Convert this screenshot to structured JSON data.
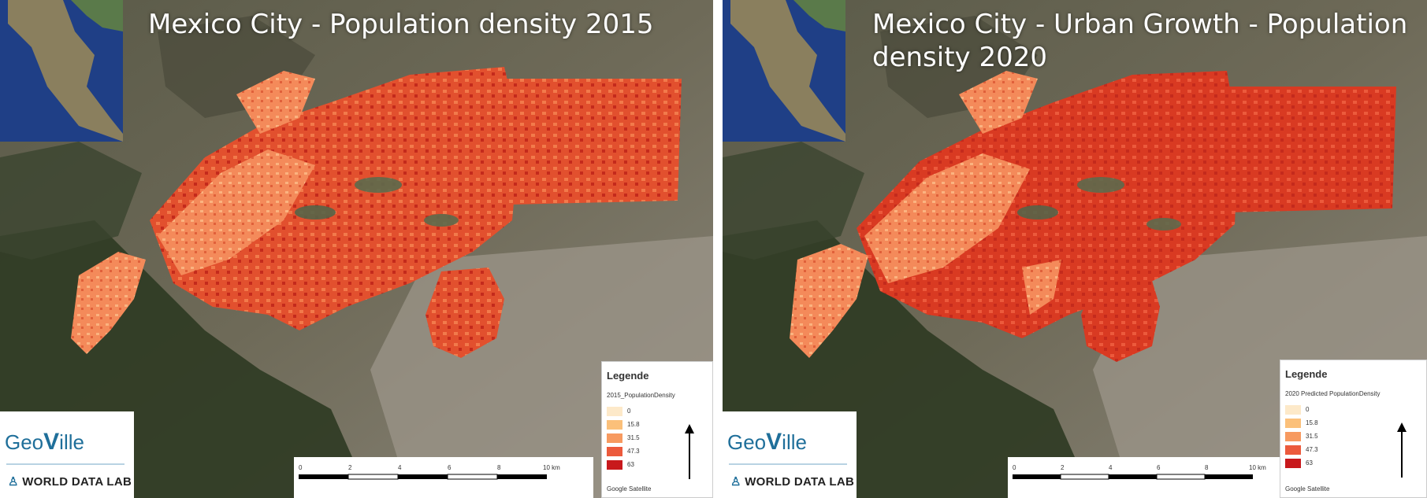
{
  "left_map": {
    "title": "Mexico City - Population density 2015",
    "legend": {
      "title": "Legende",
      "layer": "2015_PopulationDensity",
      "items": [
        {
          "label": "0",
          "color": "#fde9c9"
        },
        {
          "label": "15.8",
          "color": "#fbc07a"
        },
        {
          "label": "31.5",
          "color": "#f79a60"
        },
        {
          "label": "47.3",
          "color": "#ec5a3c"
        },
        {
          "label": "63",
          "color": "#c8191c"
        }
      ],
      "source": "Google Satellite"
    },
    "scalebar": {
      "ticks": [
        "0",
        "2",
        "4",
        "6",
        "8",
        "10 km"
      ]
    },
    "logo": {
      "geo": "Geo",
      "ville_v": "V",
      "ville_rest": "ille",
      "partner": "WORLD DATA LAB"
    }
  },
  "right_map": {
    "title_line1": "Mexico City - Urban Growth - Population",
    "title_line2": "density 2020",
    "legend": {
      "title": "Legende",
      "layer": "2020 Predicted PopulationDensity",
      "items": [
        {
          "label": "0",
          "color": "#fde9c9"
        },
        {
          "label": "15.8",
          "color": "#fbc07a"
        },
        {
          "label": "31.5",
          "color": "#f79a60"
        },
        {
          "label": "47.3",
          "color": "#ec5a3c"
        },
        {
          "label": "63",
          "color": "#c8191c"
        }
      ],
      "source": "Google Satellite"
    },
    "scalebar": {
      "ticks": [
        "0",
        "2",
        "4",
        "6",
        "8",
        "10 km"
      ]
    },
    "logo": {
      "geo": "Geo",
      "ville_v": "V",
      "ville_rest": "ille",
      "partner": "WORLD DATA LAB"
    }
  }
}
